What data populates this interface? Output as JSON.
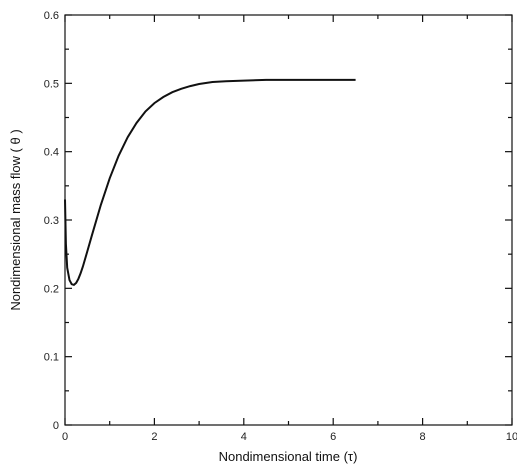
{
  "chart_data": {
    "type": "line",
    "xlabel": "Nondimensional time (τ)",
    "ylabel": "Nondimensional mass flow ( θ )",
    "xlim": [
      0,
      10
    ],
    "ylim": [
      0,
      0.6
    ],
    "x_ticks": [
      0,
      2,
      4,
      6,
      8,
      10
    ],
    "x_tick_labels": [
      "0",
      "2",
      "4",
      "6",
      "8",
      "10"
    ],
    "y_ticks": [
      0,
      0.1,
      0.2,
      0.3,
      0.4,
      0.5,
      0.6
    ],
    "y_tick_labels": [
      "0",
      "0.1",
      "0.2",
      "0.3",
      "0.4",
      "0.5",
      "0.6"
    ],
    "grid": false,
    "legend": false,
    "series": [
      {
        "x": [
          0.0,
          0.02,
          0.05,
          0.1,
          0.15,
          0.2,
          0.25,
          0.3,
          0.35,
          0.4,
          0.5,
          0.6,
          0.8,
          1.0,
          1.2,
          1.4,
          1.6,
          1.8,
          2.0,
          2.2,
          2.4,
          2.6,
          2.8,
          3.0,
          3.3,
          3.6,
          4.0,
          4.5,
          5.0,
          5.5,
          6.0,
          6.5
        ],
        "y": [
          0.33,
          0.265,
          0.23,
          0.212,
          0.206,
          0.205,
          0.208,
          0.214,
          0.222,
          0.232,
          0.254,
          0.277,
          0.322,
          0.361,
          0.394,
          0.421,
          0.442,
          0.459,
          0.471,
          0.48,
          0.487,
          0.492,
          0.496,
          0.499,
          0.502,
          0.503,
          0.504,
          0.505,
          0.505,
          0.505,
          0.505,
          0.505
        ]
      }
    ]
  }
}
